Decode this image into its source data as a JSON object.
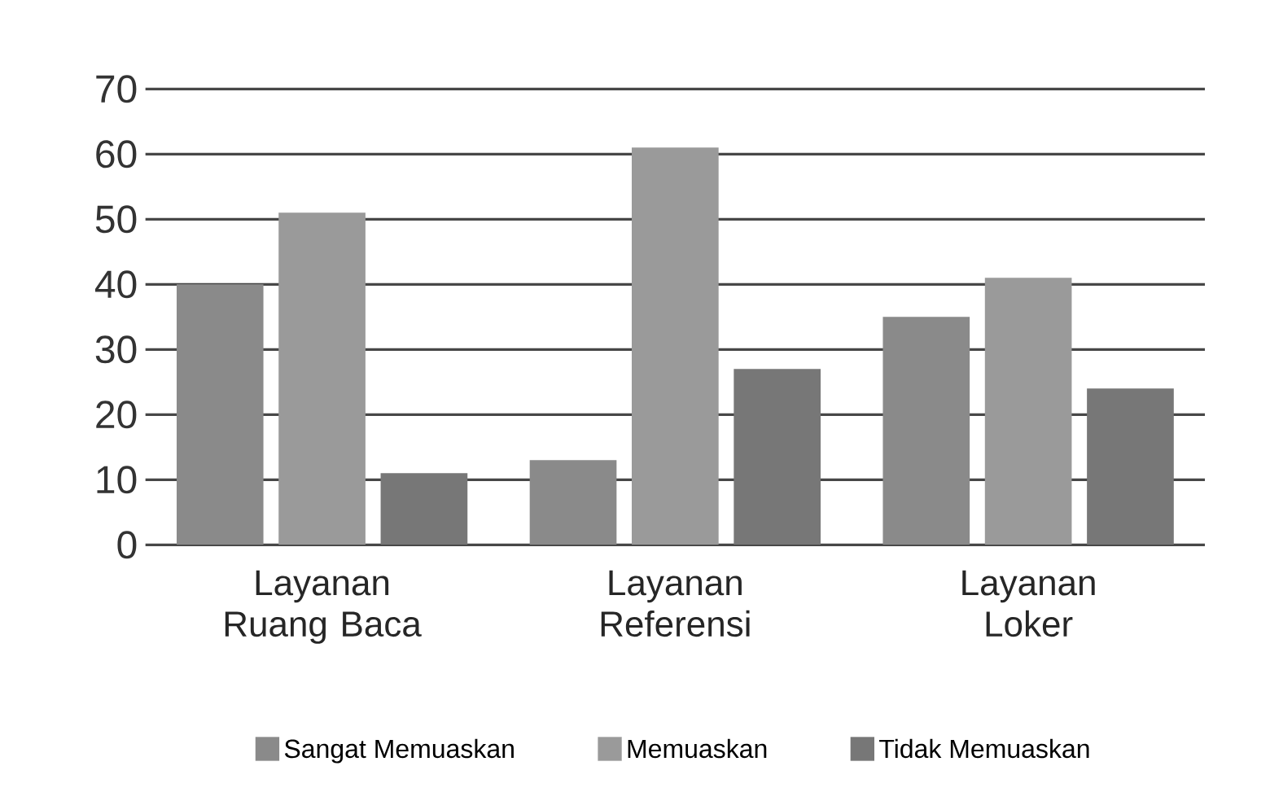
{
  "chart_data": {
    "type": "bar",
    "categories": [
      "Layanan Ruang Baca",
      "Layanan Referensi",
      "Layanan Loker"
    ],
    "series": [
      {
        "name": "Sangat Memuaskan",
        "color": "#8a8a8a",
        "values": [
          40,
          13,
          35
        ]
      },
      {
        "name": "Memuaskan",
        "color": "#9a9a9a",
        "values": [
          51,
          61,
          41
        ]
      },
      {
        "name": "Tidak Memuaskan",
        "color": "#777777",
        "values": [
          11,
          27,
          24
        ]
      }
    ],
    "ylim": [
      0,
      70
    ],
    "yticks": [
      0,
      10,
      20,
      30,
      40,
      50,
      60,
      70
    ],
    "grid": "y",
    "legend": "bottom"
  }
}
